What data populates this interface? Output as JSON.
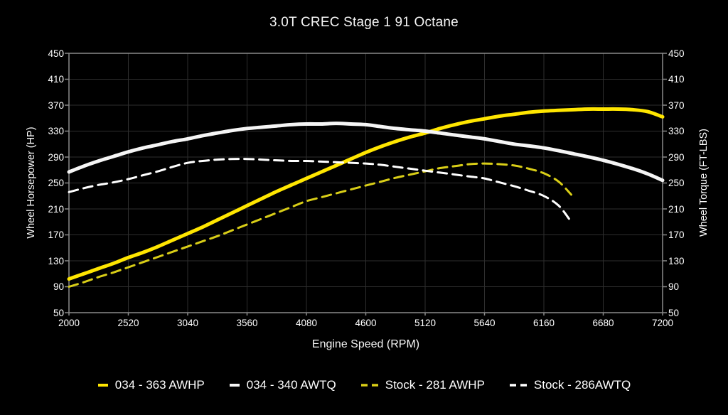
{
  "title": "3.0T CREC Stage 1 91 Octane",
  "axes": {
    "x_label": "Engine Speed (RPM)",
    "y_left_label": "Wheel Horsepower (HP)",
    "y_right_label": "Wheel Torque (FT-LBS)"
  },
  "colors": {
    "background": "#000000",
    "grid": "#2e2e2e",
    "spine": "#8a8a8a",
    "text": "#ffffff",
    "accent_yellow": "#ffe600",
    "accent_yellow_dim": "#d9ce17",
    "accent_white": "#f5f5f5"
  },
  "legend": {
    "items": [
      {
        "label": "034 - 363 AWHP",
        "color": "#ffe600",
        "dash": "solid"
      },
      {
        "label": "034 - 340 AWTQ",
        "color": "#f5f5f5",
        "dash": "solid"
      },
      {
        "label": "Stock - 281 AWHP",
        "color": "#d9ce17",
        "dash": "dashed"
      },
      {
        "label": "Stock - 286AWTQ",
        "color": "#ffffff",
        "dash": "dashed"
      }
    ]
  },
  "chart_data": {
    "type": "line",
    "title": "3.0T CREC Stage 1 91 Octane",
    "xlabel": "Engine Speed (RPM)",
    "ylabel_left": "Wheel Horsepower (HP)",
    "ylabel_right": "Wheel Torque (FT-LBS)",
    "xlim": [
      2000,
      7200
    ],
    "ylim": [
      50,
      450
    ],
    "x_ticks": [
      2000,
      2520,
      3040,
      3560,
      4080,
      4600,
      5120,
      5640,
      6160,
      6680,
      7200
    ],
    "y_ticks": [
      450,
      410,
      370,
      330,
      290,
      250,
      210,
      170,
      130,
      90,
      50
    ],
    "grid": true,
    "legend_position": "bottom",
    "series": [
      {
        "name": "034 - 363 AWHP",
        "axis": "HP",
        "color": "#ffe600",
        "style": "solid",
        "width": 5,
        "points": [
          [
            2000,
            102
          ],
          [
            2130,
            110
          ],
          [
            2260,
            118
          ],
          [
            2390,
            126
          ],
          [
            2520,
            135
          ],
          [
            2650,
            143
          ],
          [
            2780,
            152
          ],
          [
            2910,
            162
          ],
          [
            3040,
            172
          ],
          [
            3170,
            182
          ],
          [
            3300,
            193
          ],
          [
            3430,
            204
          ],
          [
            3560,
            215
          ],
          [
            3690,
            226
          ],
          [
            3820,
            237
          ],
          [
            3950,
            247
          ],
          [
            4080,
            257
          ],
          [
            4210,
            267
          ],
          [
            4340,
            277
          ],
          [
            4470,
            287
          ],
          [
            4600,
            297
          ],
          [
            4730,
            306
          ],
          [
            4860,
            314
          ],
          [
            4990,
            321
          ],
          [
            5120,
            327
          ],
          [
            5250,
            334
          ],
          [
            5380,
            340
          ],
          [
            5510,
            345
          ],
          [
            5640,
            349
          ],
          [
            5770,
            353
          ],
          [
            5900,
            356
          ],
          [
            6030,
            359
          ],
          [
            6160,
            361
          ],
          [
            6290,
            362
          ],
          [
            6420,
            363
          ],
          [
            6550,
            364
          ],
          [
            6680,
            364
          ],
          [
            6810,
            364
          ],
          [
            6940,
            363
          ],
          [
            7070,
            360
          ],
          [
            7200,
            352
          ]
        ]
      },
      {
        "name": "034 - 340 AWTQ",
        "axis": "FT-LBS",
        "color": "#f5f5f5",
        "style": "solid",
        "width": 5,
        "points": [
          [
            2000,
            267
          ],
          [
            2130,
            276
          ],
          [
            2260,
            284
          ],
          [
            2390,
            291
          ],
          [
            2520,
            298
          ],
          [
            2650,
            304
          ],
          [
            2780,
            309
          ],
          [
            2910,
            314
          ],
          [
            3040,
            318
          ],
          [
            3170,
            323
          ],
          [
            3300,
            327
          ],
          [
            3430,
            331
          ],
          [
            3560,
            334
          ],
          [
            3690,
            336
          ],
          [
            3820,
            338
          ],
          [
            3950,
            340
          ],
          [
            4080,
            341
          ],
          [
            4210,
            341
          ],
          [
            4340,
            342
          ],
          [
            4470,
            341
          ],
          [
            4600,
            340
          ],
          [
            4730,
            337
          ],
          [
            4860,
            334
          ],
          [
            4990,
            332
          ],
          [
            5120,
            330
          ],
          [
            5250,
            327
          ],
          [
            5380,
            324
          ],
          [
            5510,
            321
          ],
          [
            5640,
            318
          ],
          [
            5770,
            314
          ],
          [
            5900,
            310
          ],
          [
            6160,
            304
          ],
          [
            6420,
            295
          ],
          [
            6680,
            285
          ],
          [
            6940,
            272
          ],
          [
            7070,
            264
          ],
          [
            7200,
            254
          ]
        ]
      },
      {
        "name": "Stock - 281 AWHP",
        "axis": "HP",
        "color": "#d9ce17",
        "style": "dashed",
        "width": 3,
        "points": [
          [
            2000,
            90
          ],
          [
            2130,
            97
          ],
          [
            2260,
            105
          ],
          [
            2390,
            112
          ],
          [
            2520,
            120
          ],
          [
            2650,
            128
          ],
          [
            2780,
            136
          ],
          [
            2910,
            144
          ],
          [
            3040,
            152
          ],
          [
            3170,
            160
          ],
          [
            3300,
            168
          ],
          [
            3430,
            177
          ],
          [
            3560,
            186
          ],
          [
            3690,
            195
          ],
          [
            3820,
            204
          ],
          [
            3950,
            213
          ],
          [
            4080,
            222
          ],
          [
            4210,
            228
          ],
          [
            4340,
            234
          ],
          [
            4470,
            240
          ],
          [
            4600,
            246
          ],
          [
            4730,
            252
          ],
          [
            4860,
            258
          ],
          [
            4990,
            263
          ],
          [
            5120,
            268
          ],
          [
            5250,
            273
          ],
          [
            5380,
            276
          ],
          [
            5510,
            279
          ],
          [
            5640,
            280
          ],
          [
            5770,
            279
          ],
          [
            5900,
            277
          ],
          [
            6030,
            272
          ],
          [
            6160,
            265
          ],
          [
            6290,
            252
          ],
          [
            6400,
            232
          ]
        ]
      },
      {
        "name": "Stock - 286AWTQ",
        "axis": "FT-LBS",
        "color": "#ffffff",
        "style": "dashed",
        "width": 3,
        "points": [
          [
            2000,
            236
          ],
          [
            2130,
            242
          ],
          [
            2260,
            247
          ],
          [
            2390,
            251
          ],
          [
            2520,
            256
          ],
          [
            2650,
            262
          ],
          [
            2780,
            268
          ],
          [
            2910,
            275
          ],
          [
            3040,
            281
          ],
          [
            3170,
            284
          ],
          [
            3300,
            286
          ],
          [
            3430,
            287
          ],
          [
            3560,
            287
          ],
          [
            3690,
            286
          ],
          [
            3820,
            285
          ],
          [
            3950,
            284
          ],
          [
            4080,
            284
          ],
          [
            4210,
            283
          ],
          [
            4340,
            282
          ],
          [
            4600,
            280
          ],
          [
            4730,
            278
          ],
          [
            4860,
            275
          ],
          [
            4990,
            272
          ],
          [
            5120,
            269
          ],
          [
            5250,
            266
          ],
          [
            5380,
            263
          ],
          [
            5510,
            260
          ],
          [
            5640,
            257
          ],
          [
            5770,
            251
          ],
          [
            5900,
            245
          ],
          [
            6030,
            238
          ],
          [
            6160,
            230
          ],
          [
            6290,
            215
          ],
          [
            6400,
            190
          ]
        ]
      }
    ]
  }
}
